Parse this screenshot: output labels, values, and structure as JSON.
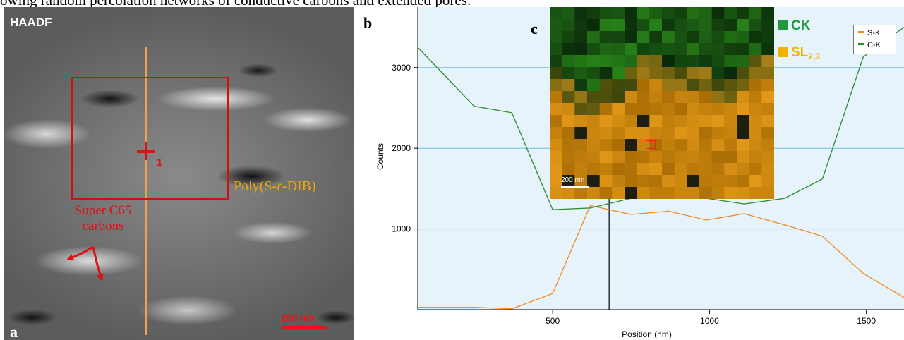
{
  "caption": "owing random percolation networks of conductive carbons and extended pores.",
  "panel_a": {
    "title": "HAADF",
    "label": "a",
    "point_label": "1",
    "matrix_label_pre": "Poly(S-",
    "matrix_label_r": "r",
    "matrix_label_post": "-DIB)",
    "carbon_label_line1": "Super C65",
    "carbon_label_line2": "carbons",
    "scale_bar": "200 nm",
    "colors": {
      "line": "#f0a050",
      "roi": "#cc1111",
      "text_red": "#dd1111",
      "matrix": "#f2a800"
    }
  },
  "panel_b": {
    "label": "b"
  },
  "panel_c": {
    "label": "c",
    "scale_bar": "200 nm",
    "legend": [
      {
        "name": "CK",
        "color": "#1c9a3c"
      },
      {
        "name": "SL",
        "subscript": "2,3",
        "color": "#f2b200"
      }
    ]
  },
  "chart_data": {
    "type": "line",
    "xlabel": "Position (nm)",
    "ylabel": "Counts",
    "xlim": [
      70,
      1620
    ],
    "ylim": [
      0,
      3750
    ],
    "xticks": [
      500,
      1000,
      1500
    ],
    "yticks": [
      1000,
      2000,
      3000
    ],
    "marker_line_x": 680,
    "background": "#e6f3fa",
    "grid": true,
    "legend_placement": "top-right",
    "series": [
      {
        "name": "S-K",
        "color": "#f08a1e",
        "x": [
          70,
          130,
          250,
          370,
          500,
          620,
          750,
          870,
          990,
          1110,
          1240,
          1360,
          1490,
          1620
        ],
        "y": [
          30,
          30,
          30,
          10,
          200,
          1290,
          1180,
          1220,
          1110,
          1190,
          1050,
          910,
          450,
          150
        ]
      },
      {
        "name": "C-K",
        "color": "#2a8a2a",
        "x": [
          70,
          250,
          370,
          500,
          620,
          750,
          870,
          990,
          1110,
          1240,
          1360,
          1490,
          1620
        ],
        "y": [
          3250,
          2520,
          2440,
          1240,
          1260,
          1380,
          1460,
          1380,
          1310,
          1380,
          1620,
          3130,
          3500
        ]
      }
    ]
  }
}
